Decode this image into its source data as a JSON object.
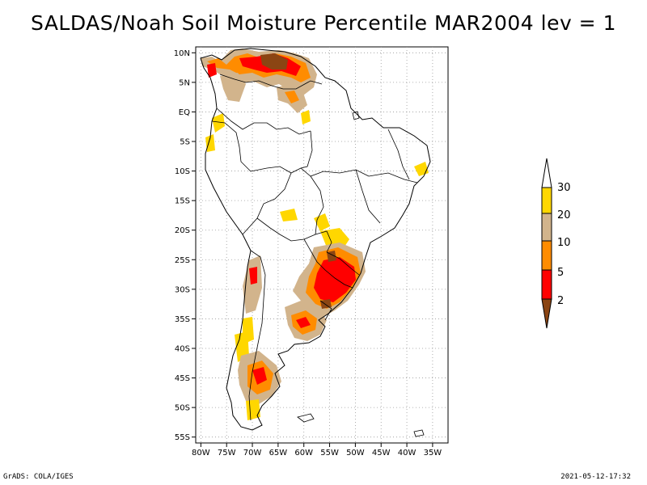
{
  "title": "SALDAS/Noah Soil Moisture Percentile MAR2004 lev = 1",
  "lat_labels": [
    "10N",
    "5N",
    "EQ",
    "5S",
    "10S",
    "15S",
    "20S",
    "25S",
    "30S",
    "35S",
    "40S",
    "45S",
    "50S",
    "55S"
  ],
  "lon_labels": [
    "80W",
    "75W",
    "70W",
    "65W",
    "60W",
    "55W",
    "50W",
    "45W",
    "40W",
    "35W"
  ],
  "legend": {
    "labels": [
      "30",
      "20",
      "10",
      "5",
      "2"
    ],
    "colors": {
      "above30": "#ffffff",
      "p20_30": "#ffd700",
      "p10_20": "#d2b48c",
      "p5_10": "#ff8c00",
      "p2_5": "#ff0000",
      "below2": "#8b4513"
    }
  },
  "footer": {
    "left": "GrADS: COLA/IGES",
    "right": "2021-05-12-17:32"
  }
}
